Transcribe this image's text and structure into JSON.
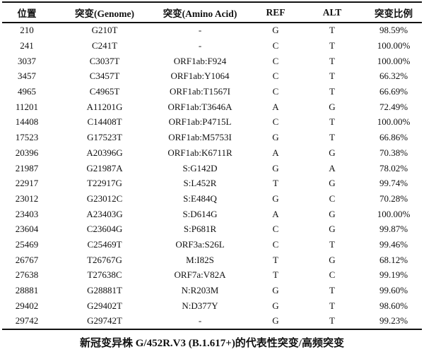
{
  "table": {
    "headers": [
      "位置",
      "突变(Genome)",
      "突变(Amino Acid)",
      "REF",
      "ALT",
      "突变比例"
    ],
    "rows": [
      [
        "210",
        "G210T",
        "-",
        "G",
        "T",
        "98.59%"
      ],
      [
        "241",
        "C241T",
        "-",
        "C",
        "T",
        "100.00%"
      ],
      [
        "3037",
        "C3037T",
        "ORF1ab:F924",
        "C",
        "T",
        "100.00%"
      ],
      [
        "3457",
        "C3457T",
        "ORF1ab:Y1064",
        "C",
        "T",
        "66.32%"
      ],
      [
        "4965",
        "C4965T",
        "ORF1ab:T1567I",
        "C",
        "T",
        "66.69%"
      ],
      [
        "11201",
        "A11201G",
        "ORF1ab:T3646A",
        "A",
        "G",
        "72.49%"
      ],
      [
        "14408",
        "C14408T",
        "ORF1ab:P4715L",
        "C",
        "T",
        "100.00%"
      ],
      [
        "17523",
        "G17523T",
        "ORF1ab:M5753I",
        "G",
        "T",
        "66.86%"
      ],
      [
        "20396",
        "A20396G",
        "ORF1ab:K6711R",
        "A",
        "G",
        "70.38%"
      ],
      [
        "21987",
        "G21987A",
        "S:G142D",
        "G",
        "A",
        "78.02%"
      ],
      [
        "22917",
        "T22917G",
        "S:L452R",
        "T",
        "G",
        "99.74%"
      ],
      [
        "23012",
        "G23012C",
        "S:E484Q",
        "G",
        "C",
        "70.28%"
      ],
      [
        "23403",
        "A23403G",
        "S:D614G",
        "A",
        "G",
        "100.00%"
      ],
      [
        "23604",
        "C23604G",
        "S:P681R",
        "C",
        "G",
        "99.87%"
      ],
      [
        "25469",
        "C25469T",
        "ORF3a:S26L",
        "C",
        "T",
        "99.46%"
      ],
      [
        "26767",
        "T26767G",
        "M:I82S",
        "T",
        "G",
        "68.12%"
      ],
      [
        "27638",
        "T27638C",
        "ORF7a:V82A",
        "T",
        "C",
        "99.19%"
      ],
      [
        "28881",
        "G28881T",
        "N:R203M",
        "G",
        "T",
        "99.60%"
      ],
      [
        "29402",
        "G29402T",
        "N:D377Y",
        "G",
        "T",
        "98.60%"
      ],
      [
        "29742",
        "G29742T",
        "-",
        "G",
        "T",
        "99.23%"
      ]
    ]
  },
  "caption": "新冠变异株 G/452R.V3 (B.1.617+)的代表性突变/高频突变"
}
